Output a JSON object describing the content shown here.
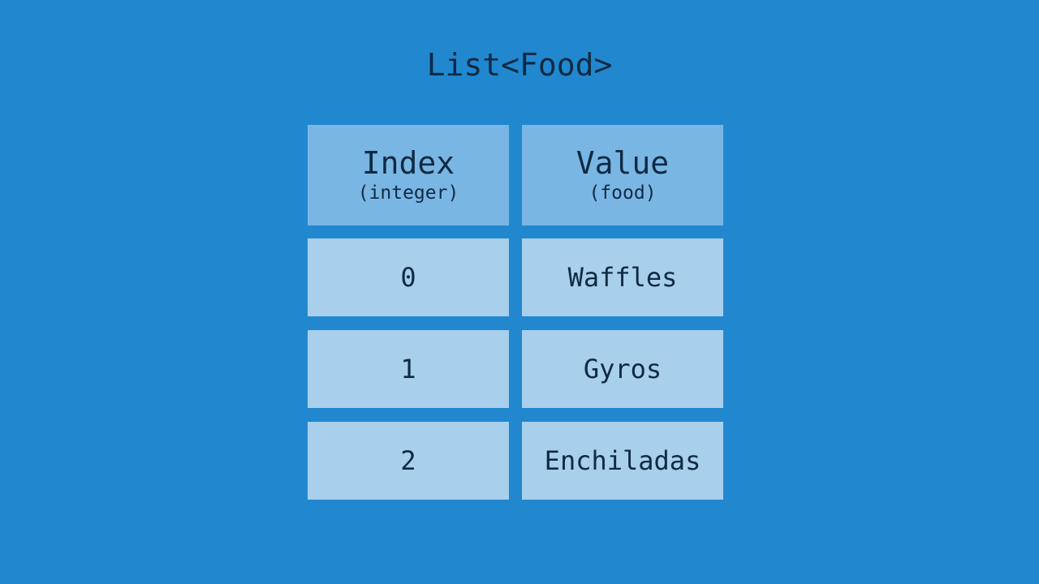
{
  "title": "List<Food>",
  "columns": [
    {
      "label": "Index",
      "type": "(integer)"
    },
    {
      "label": "Value",
      "type": "(food)"
    }
  ],
  "rows": [
    {
      "index": "0",
      "value": "Waffles"
    },
    {
      "index": "1",
      "value": "Gyros"
    },
    {
      "index": "2",
      "value": "Enchiladas"
    }
  ],
  "colors": {
    "background": "#2188cf",
    "header": "#7ab6e3",
    "cell": "#a8cfeb",
    "text": "#0f2a44"
  }
}
